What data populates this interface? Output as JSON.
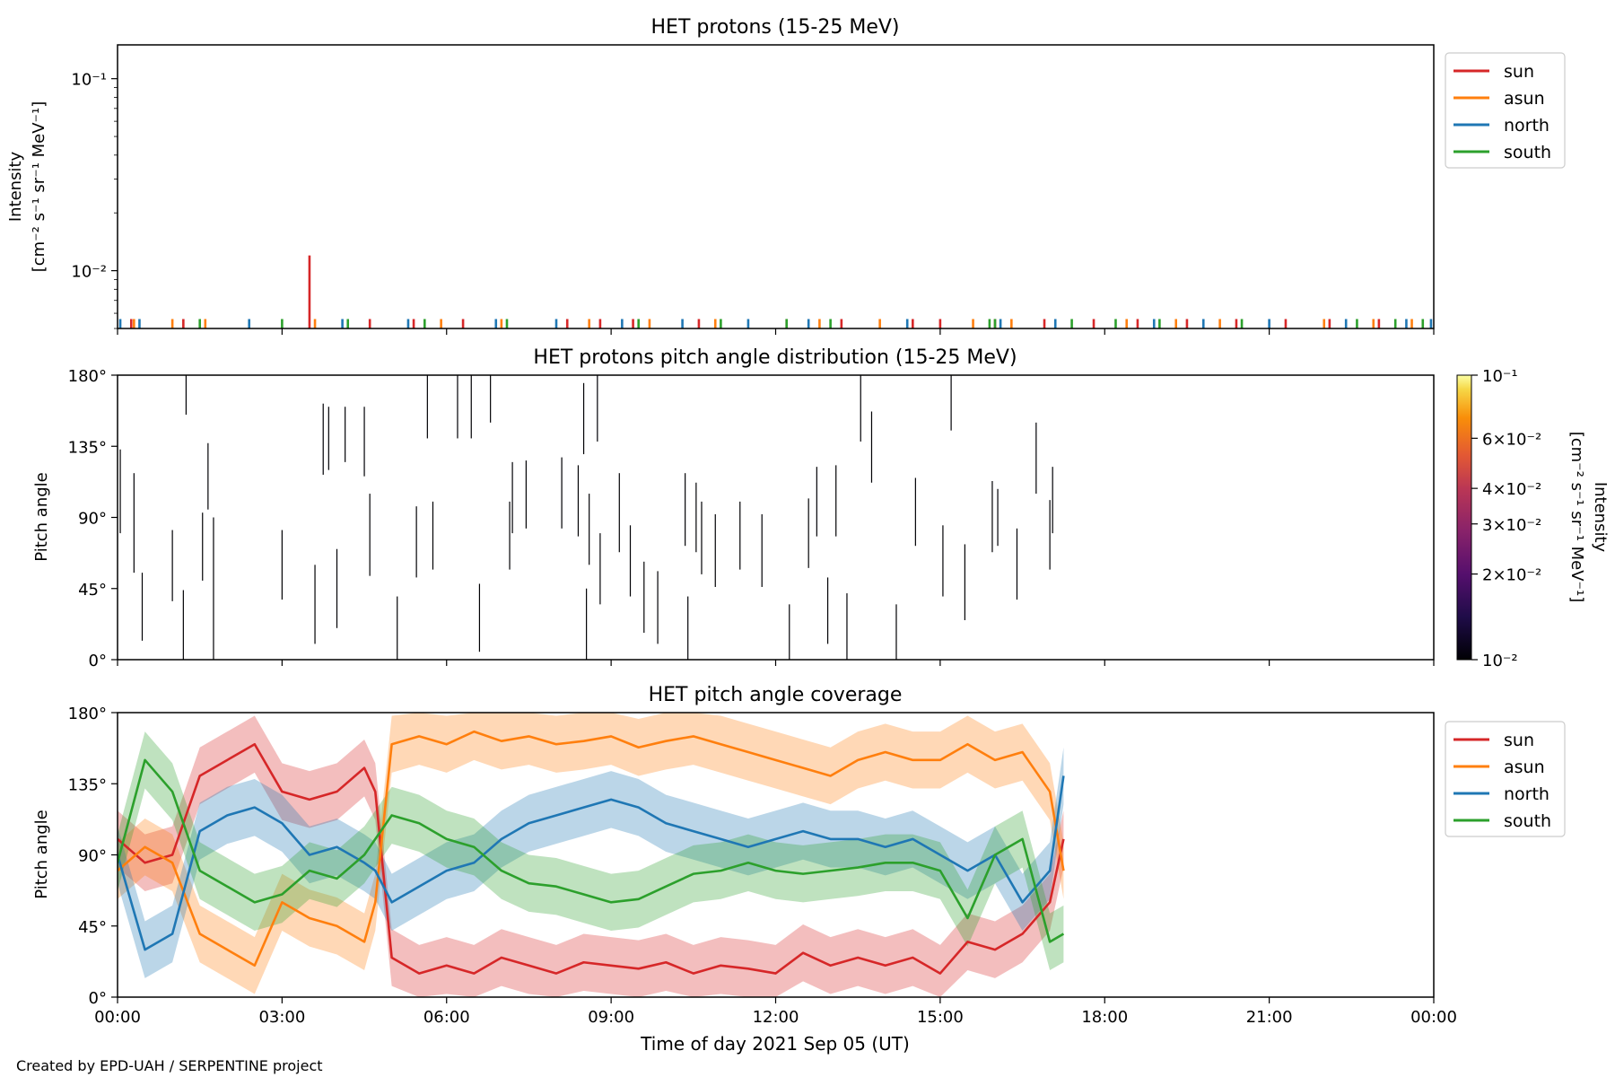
{
  "footer": {
    "credit": "Created by EPD-UAH / SERPENTINE project"
  },
  "legend_entries": [
    "sun",
    "asun",
    "north",
    "south"
  ],
  "colors": {
    "sun": "#d62728",
    "asun": "#ff7f0e",
    "north": "#1f77b4",
    "south": "#2ca02c"
  },
  "chart_data": [
    {
      "type": "line",
      "title": "HET protons (15-25 MeV)",
      "ylabel": [
        "Intensity",
        "[cm⁻² s⁻¹ sr⁻¹ MeV⁻¹]"
      ],
      "yscale": "log",
      "ylim": [
        0.005,
        0.15
      ],
      "yticks": [
        {
          "value": 0.01,
          "label": "10⁻²"
        },
        {
          "value": 0.1,
          "label": "10⁻¹"
        }
      ],
      "xlim_hours": [
        0,
        24
      ],
      "legend_position": "outside-right-top",
      "series": [
        {
          "name": "sun",
          "color": "#d62728",
          "x_hours": [
            0.25,
            1.2,
            3.5,
            4.6,
            5.4,
            6.3,
            8.2,
            8.8,
            9.4,
            10.6,
            12.2,
            13.2,
            14.5,
            15.0,
            16.0,
            16.9,
            17.8,
            18.6,
            19.5,
            20.4,
            21.3,
            22.1,
            23.0
          ],
          "y": [
            0.0056,
            0.0056,
            0.012,
            0.0056,
            0.0056,
            0.0056,
            0.0056,
            0.0056,
            0.0056,
            0.0056,
            0.0056,
            0.0056,
            0.0056,
            0.0056,
            0.0056,
            0.0056,
            0.0056,
            0.0056,
            0.0056,
            0.0056,
            0.0056,
            0.0056,
            0.0056
          ]
        },
        {
          "name": "asun",
          "color": "#ff7f0e",
          "x_hours": [
            0.3,
            1.0,
            1.6,
            3.6,
            5.9,
            7.0,
            8.6,
            9.7,
            10.9,
            12.8,
            13.9,
            15.6,
            16.3,
            18.4,
            19.3,
            20.1,
            22.0,
            22.9,
            23.6
          ],
          "y": [
            0.0056,
            0.0056,
            0.0056,
            0.0056,
            0.0056,
            0.0056,
            0.0056,
            0.0056,
            0.0056,
            0.0056,
            0.0056,
            0.0056,
            0.0056,
            0.0056,
            0.0056,
            0.0056,
            0.0056,
            0.0056,
            0.0056
          ]
        },
        {
          "name": "north",
          "color": "#1f77b4",
          "x_hours": [
            0.05,
            0.4,
            2.4,
            4.1,
            5.3,
            6.9,
            8.0,
            9.2,
            10.3,
            11.5,
            12.6,
            14.4,
            16.1,
            17.1,
            18.9,
            19.8,
            21.0,
            22.4,
            23.5,
            23.95
          ],
          "y": [
            0.0056,
            0.0056,
            0.0056,
            0.0056,
            0.0056,
            0.0056,
            0.0056,
            0.0056,
            0.0056,
            0.0056,
            0.0056,
            0.0056,
            0.0056,
            0.0056,
            0.0056,
            0.0056,
            0.0056,
            0.0056,
            0.0056,
            0.0056
          ]
        },
        {
          "name": "south",
          "color": "#2ca02c",
          "x_hours": [
            1.5,
            3.0,
            4.2,
            5.6,
            7.1,
            9.5,
            11.0,
            12.2,
            13.0,
            15.9,
            16.0,
            17.4,
            18.2,
            19.0,
            20.5,
            22.6,
            23.3,
            23.8
          ],
          "y": [
            0.0056,
            0.0056,
            0.0056,
            0.0056,
            0.0056,
            0.0056,
            0.0056,
            0.0056,
            0.0056,
            0.0056,
            0.0056,
            0.0056,
            0.0056,
            0.0056,
            0.0056,
            0.0056,
            0.0056,
            0.0056
          ]
        }
      ]
    },
    {
      "type": "heatmap",
      "title": "HET protons pitch angle distribution (15-25 MeV)",
      "ylabel": "Pitch angle",
      "ylim": [
        0,
        180
      ],
      "yticks": [
        "0°",
        "45°",
        "90°",
        "135°",
        "180°"
      ],
      "xlim_hours": [
        0,
        24
      ],
      "colorbar": {
        "label": [
          "Intensity",
          "[cm⁻² s⁻¹ sr⁻¹ MeV⁻¹]"
        ],
        "scale": "log",
        "range": [
          0.01,
          0.1
        ],
        "colormap": "inferno",
        "ticks": [
          {
            "value": 0.01,
            "label": "10⁻²"
          },
          {
            "value": 0.02,
            "label": "2×10⁻²"
          },
          {
            "value": 0.03,
            "label": "3×10⁻²"
          },
          {
            "value": 0.04,
            "label": "4×10⁻²"
          },
          {
            "value": 0.06,
            "label": "6×10⁻²"
          },
          {
            "value": 0.1,
            "label": "10⁻¹"
          }
        ]
      },
      "segments": [
        {
          "t": 0.05,
          "y0": 80,
          "y1": 133
        },
        {
          "t": 0.3,
          "y0": 55,
          "y1": 118
        },
        {
          "t": 0.45,
          "y0": 12,
          "y1": 55
        },
        {
          "t": 1.0,
          "y0": 37,
          "y1": 82
        },
        {
          "t": 1.2,
          "y0": 0,
          "y1": 44
        },
        {
          "t": 1.25,
          "y0": 155,
          "y1": 180
        },
        {
          "t": 1.55,
          "y0": 50,
          "y1": 93
        },
        {
          "t": 1.65,
          "y0": 95,
          "y1": 137
        },
        {
          "t": 1.75,
          "y0": 0,
          "y1": 90
        },
        {
          "t": 3.0,
          "y0": 38,
          "y1": 82
        },
        {
          "t": 3.6,
          "y0": 10,
          "y1": 60
        },
        {
          "t": 3.75,
          "y0": 117,
          "y1": 162
        },
        {
          "t": 3.85,
          "y0": 120,
          "y1": 160
        },
        {
          "t": 4.0,
          "y0": 20,
          "y1": 70
        },
        {
          "t": 4.15,
          "y0": 125,
          "y1": 160
        },
        {
          "t": 4.5,
          "y0": 116,
          "y1": 160
        },
        {
          "t": 4.6,
          "y0": 53,
          "y1": 105
        },
        {
          "t": 5.1,
          "y0": 0,
          "y1": 40
        },
        {
          "t": 5.45,
          "y0": 52,
          "y1": 97
        },
        {
          "t": 5.65,
          "y0": 140,
          "y1": 180
        },
        {
          "t": 5.75,
          "y0": 57,
          "y1": 100
        },
        {
          "t": 6.2,
          "y0": 140,
          "y1": 180
        },
        {
          "t": 6.45,
          "y0": 140,
          "y1": 180
        },
        {
          "t": 6.6,
          "y0": 5,
          "y1": 48
        },
        {
          "t": 6.8,
          "y0": 150,
          "y1": 180
        },
        {
          "t": 7.15,
          "y0": 57,
          "y1": 100
        },
        {
          "t": 7.2,
          "y0": 80,
          "y1": 125
        },
        {
          "t": 7.45,
          "y0": 83,
          "y1": 126
        },
        {
          "t": 8.1,
          "y0": 83,
          "y1": 128
        },
        {
          "t": 8.4,
          "y0": 78,
          "y1": 123
        },
        {
          "t": 8.5,
          "y0": 130,
          "y1": 175
        },
        {
          "t": 8.55,
          "y0": 0,
          "y1": 45
        },
        {
          "t": 8.6,
          "y0": 60,
          "y1": 105
        },
        {
          "t": 8.75,
          "y0": 138,
          "y1": 180
        },
        {
          "t": 8.8,
          "y0": 35,
          "y1": 80
        },
        {
          "t": 9.15,
          "y0": 68,
          "y1": 118
        },
        {
          "t": 9.35,
          "y0": 40,
          "y1": 85
        },
        {
          "t": 9.6,
          "y0": 17,
          "y1": 62
        },
        {
          "t": 9.85,
          "y0": 10,
          "y1": 56
        },
        {
          "t": 10.35,
          "y0": 72,
          "y1": 118
        },
        {
          "t": 10.4,
          "y0": 0,
          "y1": 40
        },
        {
          "t": 10.55,
          "y0": 68,
          "y1": 112
        },
        {
          "t": 10.65,
          "y0": 54,
          "y1": 100
        },
        {
          "t": 10.9,
          "y0": 46,
          "y1": 92
        },
        {
          "t": 11.35,
          "y0": 57,
          "y1": 100
        },
        {
          "t": 11.75,
          "y0": 46,
          "y1": 92
        },
        {
          "t": 12.25,
          "y0": 0,
          "y1": 35
        },
        {
          "t": 12.6,
          "y0": 58,
          "y1": 102
        },
        {
          "t": 12.75,
          "y0": 78,
          "y1": 122
        },
        {
          "t": 12.95,
          "y0": 10,
          "y1": 52
        },
        {
          "t": 13.1,
          "y0": 78,
          "y1": 123
        },
        {
          "t": 13.3,
          "y0": 0,
          "y1": 42
        },
        {
          "t": 13.55,
          "y0": 138,
          "y1": 180
        },
        {
          "t": 13.75,
          "y0": 112,
          "y1": 157
        },
        {
          "t": 14.2,
          "y0": 0,
          "y1": 35
        },
        {
          "t": 14.55,
          "y0": 72,
          "y1": 115
        },
        {
          "t": 15.05,
          "y0": 40,
          "y1": 85
        },
        {
          "t": 15.2,
          "y0": 145,
          "y1": 180
        },
        {
          "t": 15.45,
          "y0": 25,
          "y1": 73
        },
        {
          "t": 15.95,
          "y0": 68,
          "y1": 113
        },
        {
          "t": 16.05,
          "y0": 72,
          "y1": 108
        },
        {
          "t": 16.4,
          "y0": 38,
          "y1": 83
        },
        {
          "t": 16.75,
          "y0": 105,
          "y1": 150
        },
        {
          "t": 17.0,
          "y0": 57,
          "y1": 101
        },
        {
          "t": 17.05,
          "y0": 80,
          "y1": 122
        }
      ]
    },
    {
      "type": "line",
      "title": "HET pitch angle coverage",
      "ylabel": "Pitch angle",
      "ylim": [
        0,
        180
      ],
      "yticks": [
        "0°",
        "45°",
        "90°",
        "135°",
        "180°"
      ],
      "xlabel": "Time of day 2021 Sep 05 (UT)",
      "xticks": [
        "00:00",
        "03:00",
        "06:00",
        "09:00",
        "12:00",
        "15:00",
        "18:00",
        "21:00",
        "00:00"
      ],
      "xlim_hours": [
        0,
        24
      ],
      "data_range_hours": [
        0,
        17.25
      ],
      "band_halfwidth_deg": 18,
      "legend_position": "outside-right-top",
      "series": [
        {
          "name": "sun",
          "color": "#d62728",
          "x_hours": [
            0,
            0.5,
            1,
            1.5,
            2,
            2.5,
            3,
            3.5,
            4,
            4.5,
            4.7,
            5,
            5.5,
            6,
            6.5,
            7,
            7.5,
            8,
            8.5,
            9,
            9.5,
            10,
            10.5,
            11,
            11.5,
            12,
            12.5,
            13,
            13.5,
            14,
            14.5,
            15,
            15.5,
            16,
            16.5,
            17,
            17.25
          ],
          "y": [
            100,
            85,
            90,
            140,
            150,
            160,
            130,
            125,
            130,
            145,
            130,
            25,
            15,
            20,
            15,
            25,
            20,
            15,
            22,
            20,
            18,
            22,
            15,
            20,
            18,
            15,
            28,
            20,
            25,
            20,
            25,
            15,
            35,
            30,
            40,
            60,
            100
          ]
        },
        {
          "name": "asun",
          "color": "#ff7f0e",
          "x_hours": [
            0,
            0.5,
            1,
            1.5,
            2,
            2.5,
            3,
            3.5,
            4,
            4.5,
            4.7,
            5,
            5.5,
            6,
            6.5,
            7,
            7.5,
            8,
            8.5,
            9,
            9.5,
            10,
            10.5,
            11,
            11.5,
            12,
            12.5,
            13,
            13.5,
            14,
            14.5,
            15,
            15.5,
            16,
            16.5,
            17,
            17.25
          ],
          "y": [
            80,
            95,
            85,
            40,
            30,
            20,
            60,
            50,
            45,
            35,
            60,
            160,
            165,
            160,
            168,
            162,
            165,
            160,
            162,
            165,
            158,
            162,
            165,
            160,
            155,
            150,
            145,
            140,
            150,
            155,
            150,
            150,
            160,
            150,
            155,
            130,
            80
          ]
        },
        {
          "name": "north",
          "color": "#1f77b4",
          "x_hours": [
            0,
            0.5,
            1,
            1.5,
            2,
            2.5,
            3,
            3.5,
            4,
            4.5,
            4.7,
            5,
            5.5,
            6,
            6.5,
            7,
            7.5,
            8,
            8.5,
            9,
            9.5,
            10,
            10.5,
            11,
            11.5,
            12,
            12.5,
            13,
            13.5,
            14,
            14.5,
            15,
            15.5,
            16,
            16.5,
            17,
            17.25
          ],
          "y": [
            90,
            30,
            40,
            105,
            115,
            120,
            110,
            90,
            95,
            85,
            80,
            60,
            70,
            80,
            85,
            100,
            110,
            115,
            120,
            125,
            120,
            110,
            105,
            100,
            95,
            100,
            105,
            100,
            100,
            95,
            100,
            90,
            80,
            90,
            60,
            80,
            140
          ]
        },
        {
          "name": "south",
          "color": "#2ca02c",
          "x_hours": [
            0,
            0.5,
            1,
            1.5,
            2,
            2.5,
            3,
            3.5,
            4,
            4.5,
            4.7,
            5,
            5.5,
            6,
            6.5,
            7,
            7.5,
            8,
            8.5,
            9,
            9.5,
            10,
            10.5,
            11,
            11.5,
            12,
            12.5,
            13,
            13.5,
            14,
            14.5,
            15,
            15.5,
            16,
            16.5,
            17,
            17.25
          ],
          "y": [
            85,
            150,
            130,
            80,
            70,
            60,
            65,
            80,
            75,
            90,
            100,
            115,
            110,
            100,
            95,
            80,
            72,
            70,
            65,
            60,
            62,
            70,
            78,
            80,
            85,
            80,
            78,
            80,
            82,
            85,
            85,
            80,
            50,
            90,
            100,
            35,
            40
          ]
        }
      ]
    }
  ]
}
